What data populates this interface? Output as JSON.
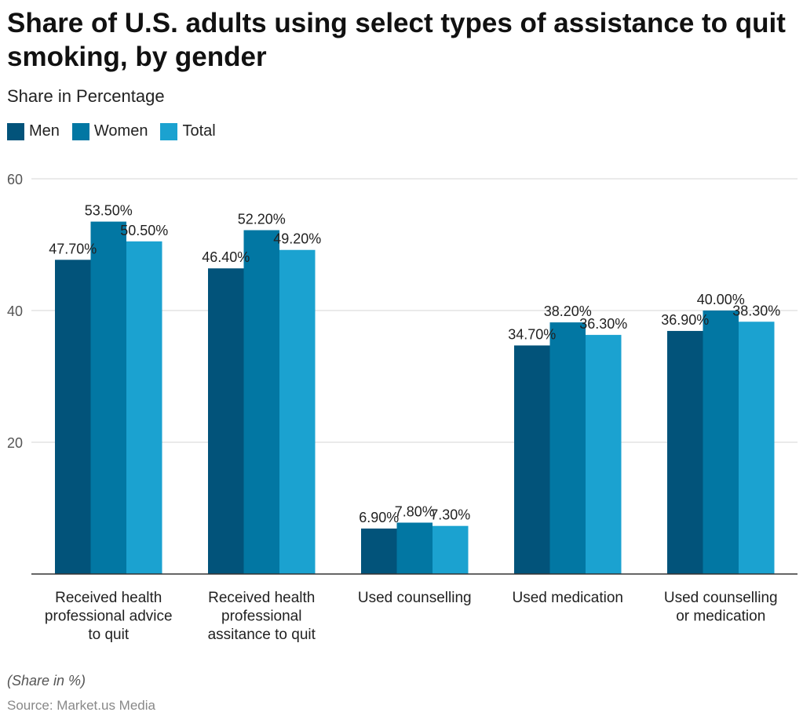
{
  "header": {
    "title": "Share of U.S. adults using select types of assistance to quit smoking, by gender",
    "subtitle": "Share in Percentage"
  },
  "legend": [
    {
      "label": "Men",
      "color": "#02537a"
    },
    {
      "label": "Women",
      "color": "#0277a3"
    },
    {
      "label": "Total",
      "color": "#1ba2d0"
    }
  ],
  "footer": {
    "note": "(Share in %)",
    "source": "Source: Market.us Media"
  },
  "chart_data": {
    "type": "bar",
    "title": "Share of U.S. adults using select types of assistance to quit smoking, by gender",
    "ylabel": "Share in Percentage",
    "ylim": [
      0,
      60
    ],
    "yticks": [
      20,
      40,
      60
    ],
    "grid": true,
    "legend_position": "top-left",
    "categories": [
      [
        "Received health",
        "professional advice",
        "to quit"
      ],
      [
        "Received health",
        "professional",
        "assitance to quit"
      ],
      [
        "Used counselling"
      ],
      [
        "Used medication"
      ],
      [
        "Used counselling",
        "or medication"
      ]
    ],
    "series": [
      {
        "name": "Men",
        "color": "#02537a",
        "values": [
          47.7,
          46.4,
          6.9,
          34.7,
          36.9
        ],
        "labels": [
          "47.70%",
          "46.40%",
          "6.90%",
          "34.70%",
          "36.90%"
        ]
      },
      {
        "name": "Women",
        "color": "#0277a3",
        "values": [
          53.5,
          52.2,
          7.8,
          38.2,
          40.0
        ],
        "labels": [
          "53.50%",
          "52.20%",
          "7.80%",
          "38.20%",
          "40.00%"
        ]
      },
      {
        "name": "Total",
        "color": "#1ba2d0",
        "values": [
          50.5,
          49.2,
          7.3,
          36.3,
          38.3
        ],
        "labels": [
          "50.50%",
          "49.20%",
          "7.30%",
          "36.30%",
          "38.30%"
        ]
      }
    ]
  }
}
